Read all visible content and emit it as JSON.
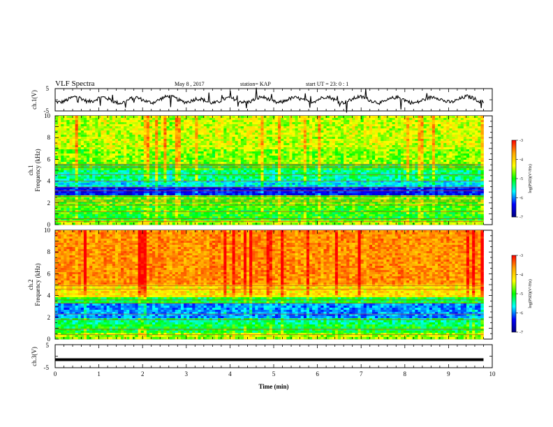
{
  "header": {
    "title": "VLF Spectra",
    "date": "May 8 , 2017",
    "station": "station= KAP",
    "start": "start UT = 23: 0 : 1"
  },
  "colorbar": {
    "label": "log(PSD)(V²/Hz)",
    "ticks": [
      "-3",
      "-4",
      "-5",
      "-6",
      "-7"
    ],
    "colors": [
      "#ff0000",
      "#ffa500",
      "#ffff00",
      "#00ff00",
      "#00ffff",
      "#0000ff",
      "#000080"
    ]
  },
  "chart_data": [
    {
      "type": "line",
      "panel": "ch1_voltage",
      "ylabel": "ch.1(V)",
      "ylim": [
        -5,
        5
      ],
      "yticks": [
        "5",
        "-5"
      ],
      "xlim": [
        0,
        10
      ],
      "x_range_data": [
        0,
        9.8
      ],
      "y": [
        -0.8,
        -1.2,
        -0.3,
        0.9,
        1.6,
        0.4,
        -0.9,
        -0.5,
        0.8,
        1.2,
        0.2,
        -1.0,
        -1.6,
        -0.7,
        0.6,
        1.1,
        0.1,
        -0.9,
        -1.3,
        -0.2,
        1.0,
        1.7,
        0.9,
        -0.4,
        -1.1,
        -0.6,
        0.5,
        0.3,
        -0.8,
        -1.5,
        -1.1,
        0.2,
        0.9,
        0.4,
        -0.6,
        -1.2,
        -0.8,
        0.4,
        1.3,
        0.7,
        -0.5,
        -1.4,
        -0.9,
        0.3,
        1.0,
        0.6,
        -0.4,
        -1.0,
        -0.5,
        0.7,
        1.5,
        0.8,
        -0.6,
        -1.3,
        -0.7,
        0.5,
        1.4,
        1.0,
        -0.2,
        -0.9,
        -1.4,
        -0.6,
        0.6,
        1.2,
        0.5,
        -0.7,
        -1.5,
        -1.0,
        0.1,
        0.9,
        1.3,
        0.4,
        -0.8,
        -1.1,
        -0.3,
        0.8,
        1.6,
        0.9,
        -0.4,
        -1.2
      ]
    },
    {
      "type": "heatmap",
      "panel": "ch1_spectrogram",
      "ylabel": "ch.1\nFrequency (kHz)",
      "ylim": [
        0,
        10
      ],
      "yticks": [
        "0",
        "2",
        "4",
        "6",
        "8",
        "10"
      ],
      "xlim": [
        0,
        10
      ],
      "x_range_data": [
        0,
        9.8
      ],
      "value_units": "log(PSD)(V²/Hz)",
      "value_range": [
        -7,
        -3
      ],
      "bands_log_psd": [
        {
          "f": [
            0.0,
            0.4
          ],
          "v": -4.6
        },
        {
          "f": [
            0.4,
            1.0
          ],
          "v": -5.0
        },
        {
          "f": [
            1.0,
            1.8
          ],
          "v": -4.9
        },
        {
          "f": [
            1.8,
            2.6
          ],
          "v": -4.8
        },
        {
          "f": [
            2.6,
            3.4
          ],
          "v": -6.3
        },
        {
          "f": [
            3.4,
            4.0
          ],
          "v": -5.6
        },
        {
          "f": [
            4.0,
            5.0
          ],
          "v": -5.3
        },
        {
          "f": [
            5.0,
            5.6
          ],
          "v": -5.0
        },
        {
          "f": [
            5.6,
            7.0
          ],
          "v": -4.7
        },
        {
          "f": [
            7.0,
            10.0
          ],
          "v": -4.5
        }
      ],
      "lines_khz": [
        0.3,
        0.55,
        1.2,
        1.8,
        2.1,
        2.25,
        2.6,
        3.1,
        3.45,
        4.0,
        4.6,
        5.25,
        5.4,
        5.55
      ]
    },
    {
      "type": "heatmap",
      "panel": "ch2_spectrogram",
      "ylabel": "ch.2\nFrequency (kHz)",
      "ylim": [
        0,
        10
      ],
      "yticks": [
        "0",
        "2",
        "4",
        "6",
        "8",
        "10"
      ],
      "xlim": [
        0,
        10
      ],
      "x_range_data": [
        0,
        9.8
      ],
      "value_units": "log(PSD)(V²/Hz)",
      "value_range": [
        -7,
        -3
      ],
      "bands_log_psd": [
        {
          "f": [
            0.0,
            0.5
          ],
          "v": -4.6
        },
        {
          "f": [
            0.5,
            1.4
          ],
          "v": -5.1
        },
        {
          "f": [
            1.4,
            2.0
          ],
          "v": -5.3
        },
        {
          "f": [
            2.0,
            3.2
          ],
          "v": -5.9
        },
        {
          "f": [
            3.2,
            3.8
          ],
          "v": -5.1
        },
        {
          "f": [
            3.8,
            5.0
          ],
          "v": -4.2
        },
        {
          "f": [
            5.0,
            10.0
          ],
          "v": -3.7
        }
      ],
      "lines_khz": [
        0.4,
        0.9,
        1.8,
        2.3,
        3.3,
        3.6,
        4.6,
        4.9
      ]
    },
    {
      "type": "line",
      "panel": "ch3_voltage",
      "ylabel": "ch.3(V)",
      "ylim": [
        -5,
        5
      ],
      "yticks": [
        "5",
        "-5"
      ],
      "xlim": [
        0,
        10
      ],
      "x_range_data": [
        0,
        9.8
      ],
      "y_constant": -1.5,
      "xlabel": "Time (min)",
      "xticks": [
        "0",
        "1",
        "2",
        "3",
        "4",
        "5",
        "6",
        "7",
        "8",
        "9",
        "10"
      ]
    }
  ]
}
